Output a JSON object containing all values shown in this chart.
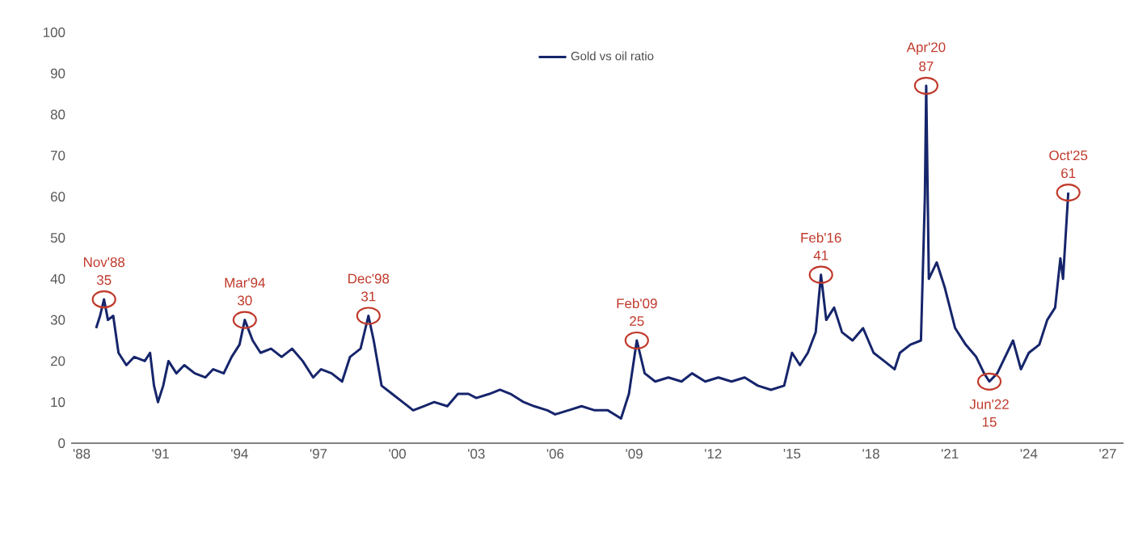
{
  "chart_data": {
    "type": "line",
    "x": [
      1988.55,
      1988.7,
      1988.85,
      1989.0,
      1989.2,
      1989.4,
      1989.7,
      1990.0,
      1990.4,
      1990.6,
      1990.75,
      1990.9,
      1991.1,
      1991.3,
      1991.6,
      1991.9,
      1992.3,
      1992.7,
      1993.0,
      1993.4,
      1993.7,
      1994.0,
      1994.2,
      1994.5,
      1994.8,
      1995.2,
      1995.6,
      1996.0,
      1996.4,
      1996.8,
      1997.1,
      1997.5,
      1997.9,
      1998.2,
      1998.6,
      1998.9,
      1999.1,
      1999.4,
      1999.8,
      2000.2,
      2000.6,
      2001.0,
      2001.4,
      2001.9,
      2002.3,
      2002.7,
      2003.0,
      2003.5,
      2003.9,
      2004.3,
      2004.8,
      2005.2,
      2005.7,
      2006.0,
      2006.5,
      2007.0,
      2007.5,
      2008.0,
      2008.5,
      2008.8,
      2009.1,
      2009.4,
      2009.8,
      2010.3,
      2010.8,
      2011.2,
      2011.7,
      2012.2,
      2012.7,
      2013.2,
      2013.7,
      2014.2,
      2014.7,
      2015.0,
      2015.3,
      2015.6,
      2015.9,
      2016.1,
      2016.3,
      2016.6,
      2016.9,
      2017.3,
      2017.7,
      2018.1,
      2018.5,
      2018.9,
      2019.1,
      2019.5,
      2019.9,
      2020.05,
      2020.1,
      2020.2,
      2020.5,
      2020.8,
      2021.2,
      2021.6,
      2022.0,
      2022.3,
      2022.5,
      2022.8,
      2023.1,
      2023.4,
      2023.7,
      2024.0,
      2024.4,
      2024.7,
      2025.0,
      2025.2,
      2025.3,
      2025.5
    ],
    "series": [
      {
        "name": "Gold vs oil ratio",
        "color": "#16256b",
        "values": [
          28,
          31,
          35,
          30,
          31,
          22,
          19,
          21,
          20,
          22,
          14,
          10,
          14,
          20,
          17,
          19,
          17,
          16,
          18,
          17,
          21,
          24,
          30,
          25,
          22,
          23,
          21,
          23,
          20,
          16,
          18,
          17,
          15,
          21,
          23,
          31,
          25,
          14,
          12,
          10,
          8,
          9,
          10,
          9,
          12,
          12,
          11,
          12,
          13,
          12,
          10,
          9,
          8,
          7,
          8,
          9,
          8,
          8,
          6,
          12,
          25,
          17,
          15,
          16,
          15,
          17,
          15,
          16,
          15,
          16,
          14,
          13,
          14,
          22,
          19,
          22,
          27,
          41,
          30,
          33,
          27,
          25,
          28,
          22,
          20,
          18,
          22,
          24,
          25,
          60,
          87,
          40,
          44,
          38,
          28,
          24,
          21,
          17,
          15,
          17,
          21,
          25,
          18,
          22,
          24,
          30,
          33,
          45,
          40,
          61
        ]
      }
    ],
    "xlim": [
      1987.6,
      2027.6
    ],
    "xticks": [
      {
        "value": 1988,
        "label": "'88"
      },
      {
        "value": 1991,
        "label": "'91"
      },
      {
        "value": 1994,
        "label": "'94"
      },
      {
        "value": 1997,
        "label": "'97"
      },
      {
        "value": 2000,
        "label": "'00"
      },
      {
        "value": 2003,
        "label": "'03"
      },
      {
        "value": 2006,
        "label": "'06"
      },
      {
        "value": 2009,
        "label": "'09"
      },
      {
        "value": 2012,
        "label": "'12"
      },
      {
        "value": 2015,
        "label": "'15"
      },
      {
        "value": 2018,
        "label": "'18"
      },
      {
        "value": 2021,
        "label": "'21"
      },
      {
        "value": 2024,
        "label": "'24"
      },
      {
        "value": 2027,
        "label": "'27"
      }
    ],
    "ylim": [
      0,
      100
    ],
    "yticks": [
      0,
      10,
      20,
      30,
      40,
      50,
      60,
      70,
      80,
      90,
      100
    ],
    "legend": "top",
    "grid": false,
    "annotations": [
      {
        "text": "Nov'88",
        "x": 1988.85,
        "y": 35
      },
      {
        "text": "35",
        "x": 1988.85,
        "y": 35
      },
      {
        "text": "Mar'94",
        "x": 1994.2,
        "y": 30
      },
      {
        "text": "30",
        "x": 1994.2,
        "y": 30
      },
      {
        "text": "Dec'98",
        "x": 1998.9,
        "y": 31
      },
      {
        "text": "31",
        "x": 1998.9,
        "y": 31
      },
      {
        "text": "Feb'09",
        "x": 2009.1,
        "y": 25
      },
      {
        "text": "25",
        "x": 2009.1,
        "y": 25
      },
      {
        "text": "Feb'16",
        "x": 2016.1,
        "y": 41
      },
      {
        "text": "41",
        "x": 2016.1,
        "y": 41
      },
      {
        "text": "Apr'20",
        "x": 2020.1,
        "y": 87
      },
      {
        "text": "87",
        "x": 2020.1,
        "y": 87
      },
      {
        "text": "Jun'22",
        "x": 2022.5,
        "y": 15
      },
      {
        "text": "15",
        "x": 2022.5,
        "y": 15
      },
      {
        "text": "Oct'25",
        "x": 2025.5,
        "y": 61
      },
      {
        "text": "61",
        "x": 2025.5,
        "y": 61
      }
    ]
  }
}
